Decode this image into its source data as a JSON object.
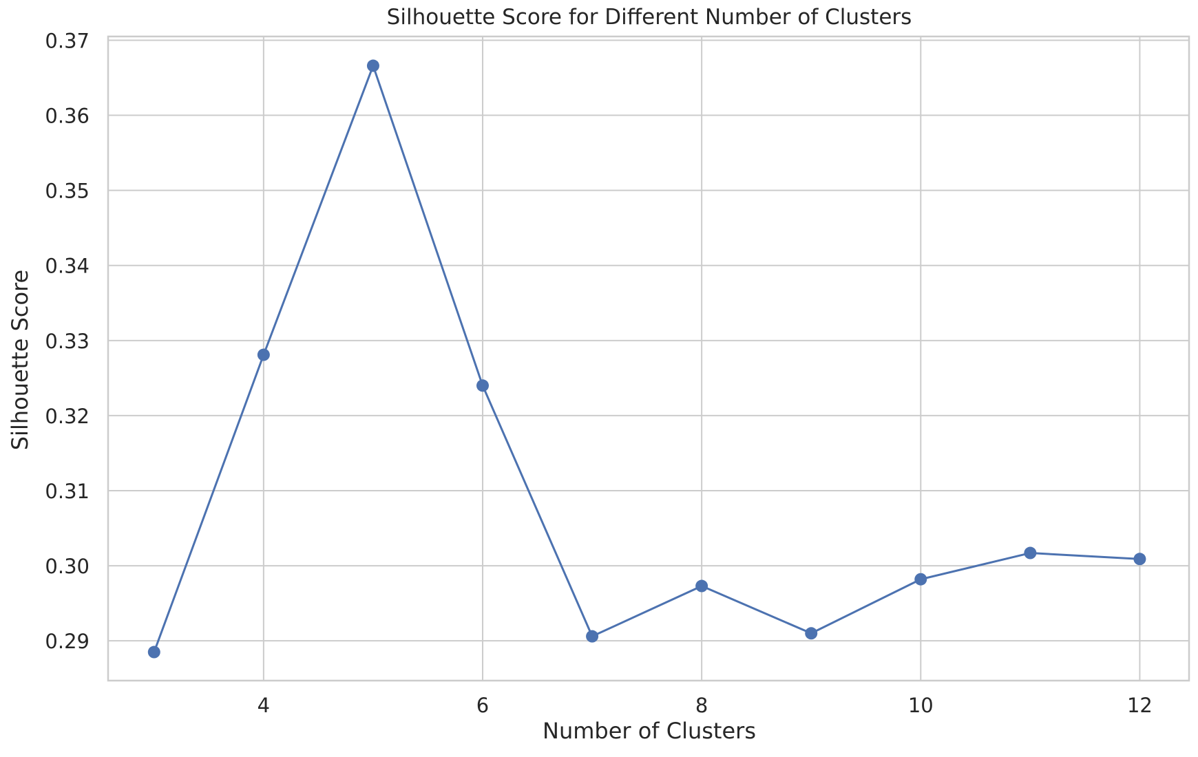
{
  "chart_data": {
    "type": "line",
    "title": "Silhouette Score for Different Number of Clusters",
    "xlabel": "Number of Clusters",
    "ylabel": "Silhouette Score",
    "x": [
      3,
      4,
      5,
      6,
      7,
      8,
      9,
      10,
      11,
      12
    ],
    "series": [
      {
        "values": [
          0.2885,
          0.3281,
          0.3666,
          0.324,
          0.2906,
          0.2973,
          0.291,
          0.2982,
          0.3017,
          0.3009
        ],
        "color": "#4c72b0",
        "marker": "circle"
      }
    ],
    "xlim": [
      2.58,
      12.45
    ],
    "ylim": [
      0.2847,
      0.3705
    ],
    "xticks": [
      4,
      6,
      8,
      10,
      12
    ],
    "xtick_labels": [
      "4",
      "6",
      "8",
      "10",
      "12"
    ],
    "yticks": [
      0.29,
      0.3,
      0.31,
      0.32,
      0.33,
      0.34,
      0.35,
      0.36,
      0.37
    ],
    "ytick_labels": [
      "0.29",
      "0.30",
      "0.31",
      "0.32",
      "0.33",
      "0.34",
      "0.35",
      "0.36",
      "0.37"
    ],
    "grid": true,
    "grid_color": "#cccccc",
    "spine_color": "#cccccc",
    "text_color": "#262626",
    "legend": "none"
  }
}
